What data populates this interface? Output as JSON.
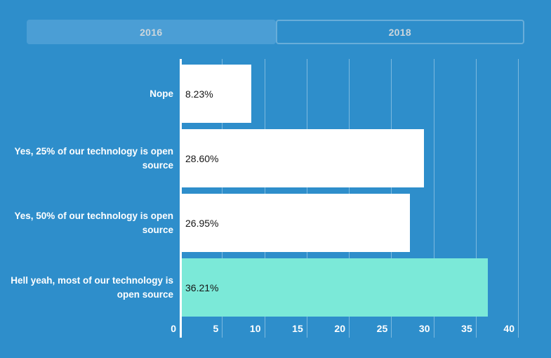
{
  "tabs": {
    "items": [
      {
        "label": "2016",
        "active": true
      },
      {
        "label": "2018",
        "active": false
      }
    ]
  },
  "colors": {
    "background": "#2e8ecb",
    "active_tab": "#4b9ed5",
    "bar_default": "#ffffff",
    "bar_highlight": "#7be9d8",
    "bar_value_text": "#151515",
    "axis_text": "#ffffff"
  },
  "chart_data": {
    "type": "bar",
    "orientation": "horizontal",
    "title": "",
    "xlabel": "",
    "ylabel": "",
    "categories": [
      "Nope",
      "Yes, 25% of our technology is open source",
      "Yes, 50% of our technology is open source",
      "Hell yeah, most of our technology is open source"
    ],
    "values": [
      8.23,
      28.6,
      26.95,
      36.21
    ],
    "value_labels": [
      "8.23%",
      "28.60%",
      "26.95%",
      "36.21%"
    ],
    "bar_colors": [
      "#ffffff",
      "#ffffff",
      "#ffffff",
      "#7be9d8"
    ],
    "x_ticks": [
      0,
      5,
      10,
      15,
      20,
      25,
      30,
      35,
      40
    ],
    "xlim": [
      0,
      43.9
    ],
    "grid": true,
    "legend": false
  }
}
